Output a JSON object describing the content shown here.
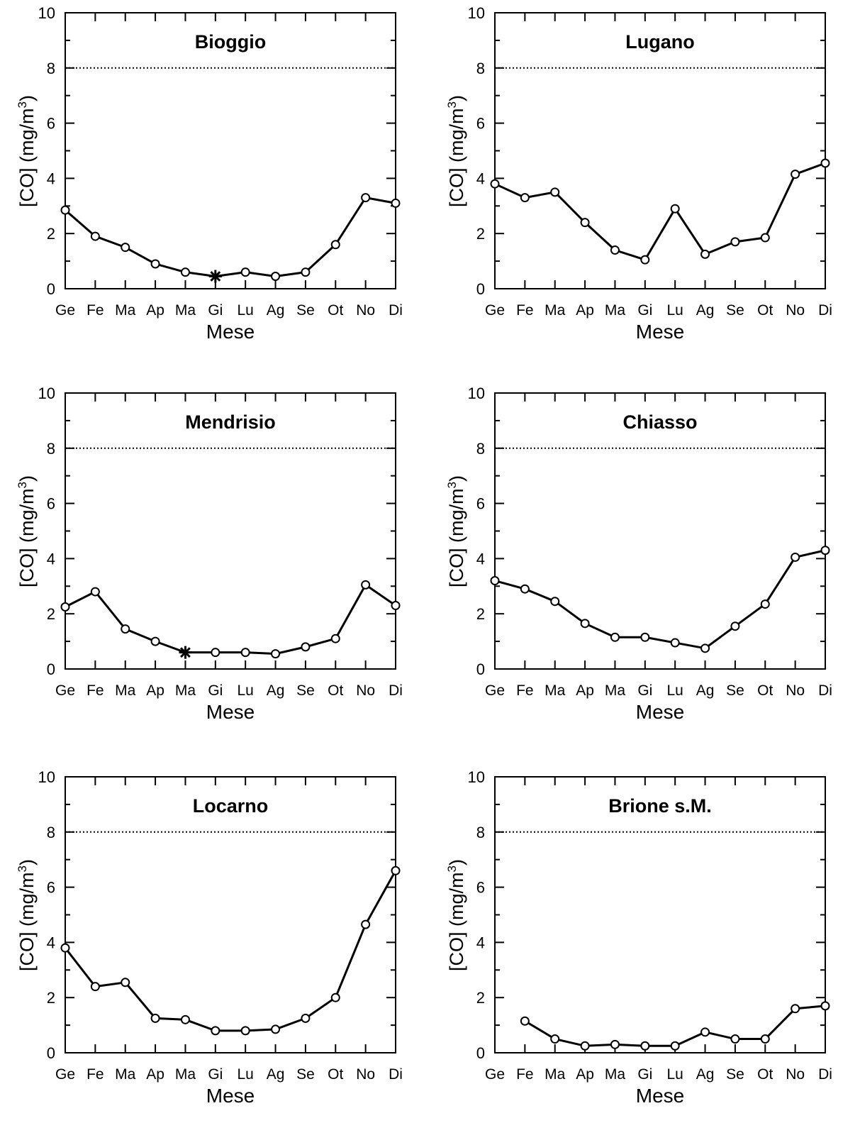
{
  "chart_data": [
    {
      "type": "line",
      "title": "Bioggio",
      "xlabel": "Mese",
      "ylabel": "[CO] (mg/m",
      "ylabel_sup": "3",
      "ylabel_tail": ")",
      "categories": [
        "Ge",
        "Fe",
        "Ma",
        "Ap",
        "Ma",
        "Gi",
        "Lu",
        "Ag",
        "Se",
        "Ot",
        "No",
        "Di"
      ],
      "values": [
        2.85,
        1.9,
        1.5,
        0.9,
        0.6,
        0.45,
        0.6,
        0.45,
        0.6,
        1.6,
        3.3,
        3.1
      ],
      "special_marker": {
        "index": 5,
        "symbol": "asterisk"
      },
      "threshold": 8,
      "ylim": [
        0,
        10
      ],
      "yticks": [
        "0",
        "2",
        "4",
        "6",
        "8",
        "10"
      ],
      "grid": false
    },
    {
      "type": "line",
      "title": "Lugano",
      "xlabel": "Mese",
      "ylabel": "[CO] (mg/m",
      "ylabel_sup": "3",
      "ylabel_tail": ")",
      "categories": [
        "Ge",
        "Fe",
        "Ma",
        "Ap",
        "Ma",
        "Gi",
        "Lu",
        "Ag",
        "Se",
        "Ot",
        "No",
        "Di"
      ],
      "values": [
        3.8,
        3.3,
        3.5,
        2.4,
        1.4,
        1.05,
        2.9,
        1.25,
        1.7,
        1.85,
        4.15,
        4.55
      ],
      "threshold": 8,
      "ylim": [
        0,
        10
      ],
      "yticks": [
        "0",
        "2",
        "4",
        "6",
        "8",
        "10"
      ],
      "grid": false
    },
    {
      "type": "line",
      "title": "Mendrisio",
      "xlabel": "Mese",
      "ylabel": "[CO] (mg/m",
      "ylabel_sup": "3",
      "ylabel_tail": ")",
      "categories": [
        "Ge",
        "Fe",
        "Ma",
        "Ap",
        "Ma",
        "Gi",
        "Lu",
        "Ag",
        "Se",
        "Ot",
        "No",
        "Di"
      ],
      "values": [
        2.25,
        2.8,
        1.45,
        1.0,
        0.6,
        0.6,
        0.6,
        0.55,
        0.8,
        1.1,
        3.05,
        2.3
      ],
      "special_marker": {
        "index": 4,
        "symbol": "asterisk"
      },
      "threshold": 8,
      "ylim": [
        0,
        10
      ],
      "yticks": [
        "0",
        "2",
        "4",
        "6",
        "8",
        "10"
      ],
      "grid": false
    },
    {
      "type": "line",
      "title": "Chiasso",
      "xlabel": "Mese",
      "ylabel": "[CO] (mg/m",
      "ylabel_sup": "3",
      "ylabel_tail": ")",
      "categories": [
        "Ge",
        "Fe",
        "Ma",
        "Ap",
        "Ma",
        "Gi",
        "Lu",
        "Ag",
        "Se",
        "Ot",
        "No",
        "Di"
      ],
      "values": [
        3.2,
        2.9,
        2.45,
        1.65,
        1.15,
        1.15,
        0.95,
        0.75,
        1.55,
        2.35,
        4.05,
        4.3
      ],
      "threshold": 8,
      "ylim": [
        0,
        10
      ],
      "yticks": [
        "0",
        "2",
        "4",
        "6",
        "8",
        "10"
      ],
      "grid": false
    },
    {
      "type": "line",
      "title": "Locarno",
      "xlabel": "Mese",
      "ylabel": "[CO] (mg/m",
      "ylabel_sup": "3",
      "ylabel_tail": ")",
      "categories": [
        "Ge",
        "Fe",
        "Ma",
        "Ap",
        "Ma",
        "Gi",
        "Lu",
        "Ag",
        "Se",
        "Ot",
        "No",
        "Di"
      ],
      "values": [
        3.8,
        2.4,
        2.55,
        1.25,
        1.2,
        0.8,
        0.8,
        0.85,
        1.25,
        2.0,
        4.65,
        6.6
      ],
      "threshold": 8,
      "ylim": [
        0,
        10
      ],
      "yticks": [
        "0",
        "2",
        "4",
        "6",
        "8",
        "10"
      ],
      "grid": false
    },
    {
      "type": "line",
      "title": "Brione s.M.",
      "xlabel": "Mese",
      "ylabel": "[CO] (mg/m",
      "ylabel_sup": "3",
      "ylabel_tail": ")",
      "categories": [
        "Ge",
        "Fe",
        "Ma",
        "Ap",
        "Ma",
        "Gi",
        "Lu",
        "Ag",
        "Se",
        "Ot",
        "No",
        "Di"
      ],
      "values": [
        null,
        1.15,
        0.5,
        0.25,
        0.3,
        0.25,
        0.25,
        0.75,
        0.5,
        0.5,
        1.6,
        1.7
      ],
      "threshold": 8,
      "ylim": [
        0,
        10
      ],
      "yticks": [
        "0",
        "2",
        "4",
        "6",
        "8",
        "10"
      ],
      "grid": false
    }
  ]
}
